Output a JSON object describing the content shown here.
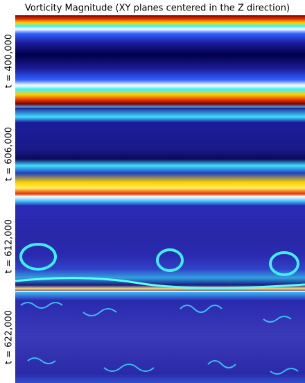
{
  "title": "Vorticity Magnitude (XY planes centered in the Z direction)",
  "panels": [
    {
      "label": "t = 400,000"
    },
    {
      "label": "t = 606,000"
    },
    {
      "label": "t = 612,000"
    },
    {
      "label": "t = 622,000"
    }
  ]
}
